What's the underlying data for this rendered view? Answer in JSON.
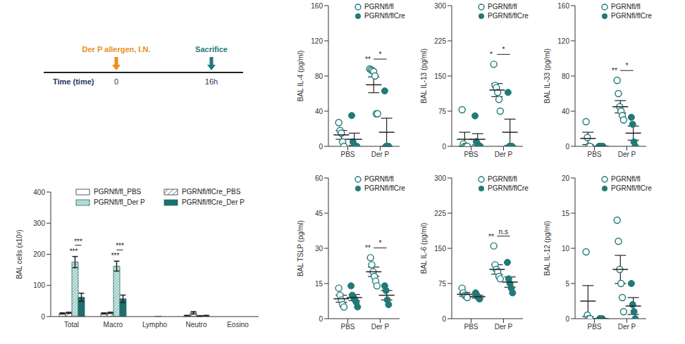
{
  "timeline": {
    "axis_label": "Time (time)",
    "events": [
      {
        "label": "Der P allergen, I.N.",
        "time": "0"
      },
      {
        "label": "Sacrifice",
        "time": "16h"
      }
    ]
  },
  "chart_data": [
    {
      "type": "bar",
      "y_label": "BAL cells (x10³)",
      "categories": [
        "Total",
        "Macro",
        "Lympho",
        "Neutro",
        "Eosino"
      ],
      "ylim": [
        0,
        400
      ],
      "yticks": [
        0,
        100,
        200,
        300,
        400
      ],
      "legend": "upper right",
      "series": [
        {
          "name": "PGRNfl/fl_PBS",
          "color": "#ffffff",
          "values": [
            10,
            10,
            0,
            3,
            0
          ],
          "errors": [
            2,
            2,
            0,
            1,
            0
          ]
        },
        {
          "name": "PGRNfl/flCre_PBS",
          "color": "#ffffff",
          "values": [
            12,
            12,
            0,
            12,
            0
          ],
          "errors": [
            2,
            2,
            0,
            4,
            0
          ]
        },
        {
          "name": "PGRNfl/fl_Der P",
          "color": "#d6ebe7",
          "values": [
            175,
            162,
            1,
            2,
            0
          ],
          "errors": [
            18,
            16,
            0,
            1,
            0
          ]
        },
        {
          "name": "PGRNfl/flCre_Der P",
          "color": "#1f6e6c",
          "values": [
            62,
            57,
            0,
            3,
            0
          ],
          "errors": [
            13,
            12,
            0,
            1,
            0
          ]
        }
      ],
      "significance": [
        {
          "category": "Total",
          "series": "PGRNfl/fl_Der P",
          "compared_with": "PGRNfl/flCre_Der P",
          "vs_PBS": "***",
          "between": "***"
        },
        {
          "category": "Macro",
          "series": "PGRNfl/fl_Der P",
          "compared_with": "PGRNfl/flCre_Der P",
          "vs_PBS": "***",
          "between": "***"
        }
      ]
    },
    {
      "type": "scatter",
      "y_label": "BAL IL-4 (pg/ml)",
      "categories": [
        "PBS",
        "Der P"
      ],
      "ylim": [
        0,
        160
      ],
      "yticks": [
        0,
        40,
        80,
        120,
        160
      ],
      "legend": "upper right",
      "series": [
        {
          "name": "PGRNfl/fl",
          "color": "#217a78",
          "marker": "open_circle",
          "values": [
            [
              27,
              18,
              15,
              5,
              0
            ],
            [
              88,
              87,
              86,
              85,
              80,
              37,
              37
            ]
          ],
          "means": [
            13,
            70
          ],
          "sems": [
            5,
            9
          ]
        },
        {
          "name": "PGRNfl/flCre",
          "color": "#217a78",
          "marker": "circle",
          "values": [
            [
              35,
              5,
              0,
              0,
              0
            ],
            [
              63,
              0,
              0,
              0
            ]
          ],
          "means": [
            8,
            16
          ],
          "sems": [
            7,
            16
          ]
        }
      ],
      "significance": {
        "vs_PBS": "**",
        "between": "*"
      }
    },
    {
      "type": "scatter",
      "y_label": "BAL IL-13 (pg/ml)",
      "categories": [
        "PBS",
        "Der P"
      ],
      "ylim": [
        0,
        300
      ],
      "yticks": [
        0,
        75,
        150,
        225,
        300
      ],
      "legend": "upper right",
      "series": [
        {
          "name": "PGRNfl/fl",
          "color": "#217a78",
          "marker": "open_circle",
          "values": [
            [
              78,
              5,
              0,
              0,
              0
            ],
            [
              175,
              130,
              125,
              115,
              100,
              75
            ]
          ],
          "means": [
            15,
            120
          ],
          "sems": [
            15,
            14
          ]
        },
        {
          "name": "PGRNfl/flCre",
          "color": "#217a78",
          "marker": "circle",
          "values": [
            [
              65,
              10,
              5,
              0,
              0
            ],
            [
              115,
              0,
              0,
              0
            ]
          ],
          "means": [
            15,
            30
          ],
          "sems": [
            12,
            28
          ]
        }
      ],
      "significance": {
        "vs_PBS": "*",
        "between": "*"
      }
    },
    {
      "type": "scatter",
      "y_label": "BAL IL-33 (pg/ml)",
      "categories": [
        "PBS",
        "Der P"
      ],
      "ylim": [
        0,
        160
      ],
      "yticks": [
        0,
        40,
        80,
        120,
        160
      ],
      "legend": "upper right",
      "series": [
        {
          "name": "PGRNfl/fl",
          "color": "#217a78",
          "marker": "open_circle",
          "values": [
            [
              28,
              10,
              0,
              0
            ],
            [
              75,
              60,
              45,
              40,
              35,
              30
            ]
          ],
          "means": [
            9,
            45
          ],
          "sems": [
            7,
            7
          ]
        },
        {
          "name": "PGRNfl/flCre",
          "color": "#217a78",
          "marker": "circle",
          "values": [
            [
              0,
              0,
              0,
              0
            ],
            [
              33,
              25,
              5,
              0
            ]
          ],
          "means": [
            0,
            15
          ],
          "sems": [
            0,
            8
          ]
        }
      ],
      "significance": {
        "vs_PBS": "**",
        "between": "*"
      }
    },
    {
      "type": "scatter",
      "y_label": "BAL TSLP (pg/ml)",
      "categories": [
        "PBS",
        "Der P"
      ],
      "ylim": [
        0,
        60
      ],
      "yticks": [
        0,
        15,
        30,
        45,
        60
      ],
      "legend": "upper right",
      "series": [
        {
          "name": "PGRNfl/fl",
          "color": "#217a78",
          "marker": "open_circle",
          "values": [
            [
              13,
              10,
              8,
              6,
              5
            ],
            [
              26,
              23,
              20,
              18,
              16,
              14
            ]
          ],
          "means": [
            8.5,
            20
          ],
          "sems": [
            1.5,
            2
          ]
        },
        {
          "name": "PGRNfl/flCre",
          "color": "#217a78",
          "marker": "circle",
          "values": [
            [
              14,
              10,
              9,
              8,
              7,
              5
            ],
            [
              14,
              12,
              8,
              6
            ]
          ],
          "means": [
            9,
            10
          ],
          "sems": [
            1.3,
            2
          ]
        }
      ],
      "significance": {
        "vs_PBS": "**",
        "between": "*"
      }
    },
    {
      "type": "scatter",
      "y_label": "BAL IL-6 (pg/ml)",
      "categories": [
        "PBS",
        "Der P"
      ],
      "ylim": [
        0,
        300
      ],
      "yticks": [
        0,
        75,
        150,
        225,
        300
      ],
      "legend": "upper right",
      "series": [
        {
          "name": "PGRNfl/fl",
          "color": "#217a78",
          "marker": "open_circle",
          "values": [
            [
              65,
              55,
              50,
              48,
              45
            ],
            [
              155,
              115,
              105,
              100,
              90,
              85
            ]
          ],
          "means": [
            52,
            105
          ],
          "sems": [
            4,
            10
          ]
        },
        {
          "name": "PGRNfl/flCre",
          "color": "#217a78",
          "marker": "circle",
          "values": [
            [
              55,
              50,
              45,
              42
            ],
            [
              120,
              85,
              75,
              65,
              55
            ]
          ],
          "means": [
            47,
            78
          ],
          "sems": [
            3,
            11
          ]
        }
      ],
      "significance": {
        "vs_PBS": "**",
        "between": "n.s"
      }
    },
    {
      "type": "scatter",
      "y_label": "BAL IL-12 (pg/ml)",
      "categories": [
        "PBS",
        "Der P"
      ],
      "ylim": [
        0,
        20
      ],
      "yticks": [
        0,
        5,
        10,
        15,
        20
      ],
      "legend": "upper right",
      "series": [
        {
          "name": "PGRNfl/fl",
          "color": "#217a78",
          "marker": "open_circle",
          "values": [
            [
              9.5,
              0.5,
              0,
              0
            ],
            [
              14,
              11,
              7,
              5,
              3,
              1
            ]
          ],
          "means": [
            2.5,
            7
          ],
          "sems": [
            2.2,
            2
          ]
        },
        {
          "name": "PGRNfl/flCre",
          "color": "#217a78",
          "marker": "circle",
          "values": [
            [
              0,
              0,
              0
            ],
            [
              5,
              2,
              1,
              0
            ]
          ],
          "means": [
            0,
            1.8
          ],
          "sems": [
            0,
            1.2
          ]
        }
      ]
    }
  ]
}
